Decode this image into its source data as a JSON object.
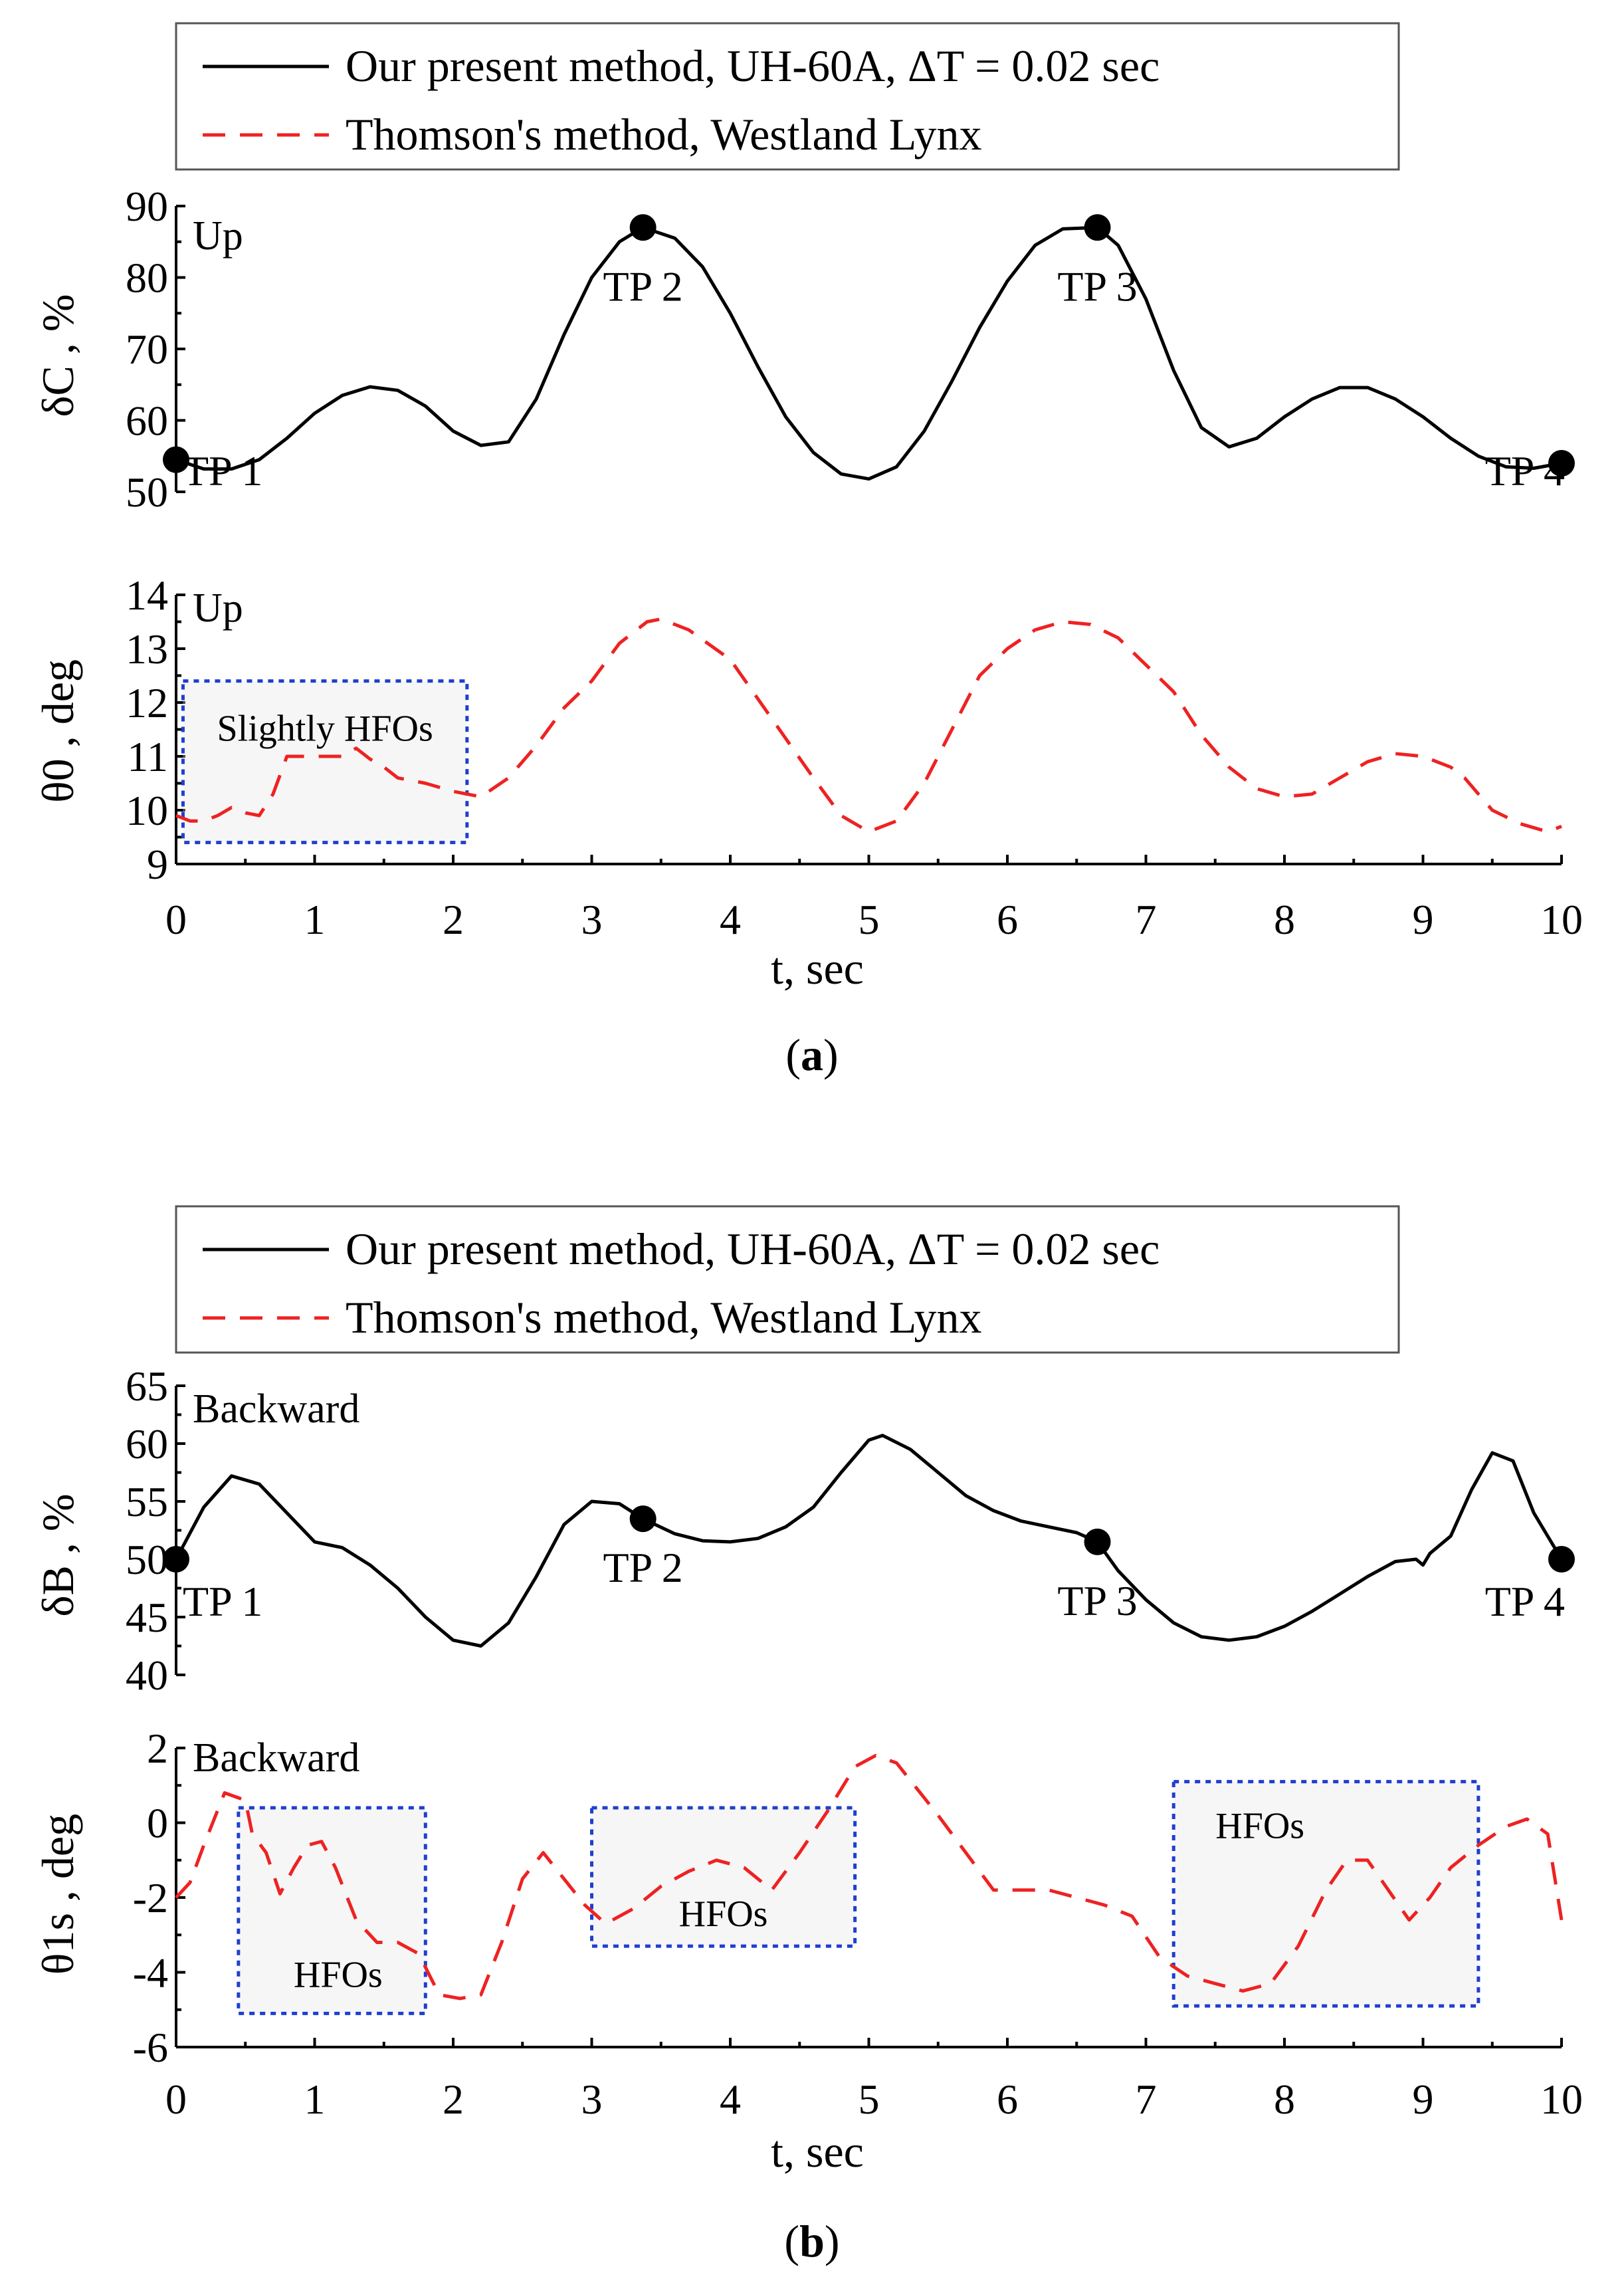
{
  "figure": {
    "colors": {
      "solid": "#000000",
      "dashed": "#ee2222",
      "hfo_box": "#1f3fcf",
      "hfo_fill": "#e6e6e6"
    }
  },
  "panels": [
    {
      "id": "a",
      "caption_letter": "a",
      "legend": {
        "solid_label": "Our present method, UH-60A, ΔT = 0.02 sec",
        "dashed_label": "Thomson's method, Westland Lynx"
      },
      "top": {
        "ylabel": "δC , %",
        "tag": "Up",
        "yticks": [
          "50",
          "60",
          "70",
          "80",
          "90"
        ],
        "ylim": [
          50,
          90
        ],
        "points": [
          {
            "label": "TP 1",
            "x": 0,
            "y": 54.5
          },
          {
            "label": "TP 2",
            "x": 3.37,
            "y": 87
          },
          {
            "label": "TP 3",
            "x": 6.65,
            "y": 87
          },
          {
            "label": "TP 4",
            "x": 10,
            "y": 54
          }
        ]
      },
      "bottom": {
        "ylabel": "θ0 , deg",
        "tag": "Up",
        "yticks": [
          "9",
          "10",
          "11",
          "12",
          "13",
          "14"
        ],
        "ylim": [
          9,
          14
        ],
        "hfo_boxes": [
          {
            "label": "Slightly HFOs",
            "x0": 0.05,
            "x1": 2.1,
            "y0": 9.4,
            "y1": 12.4
          }
        ]
      },
      "xlabel": "t, sec",
      "xticks": [
        "0",
        "1",
        "2",
        "3",
        "4",
        "5",
        "6",
        "7",
        "8",
        "9",
        "10"
      ]
    },
    {
      "id": "b",
      "caption_letter": "b",
      "legend": {
        "solid_label": "Our present method, UH-60A, ΔT = 0.02 sec",
        "dashed_label": "Thomson's method, Westland Lynx"
      },
      "top": {
        "ylabel": "δB , %",
        "tag": "Backward",
        "yticks": [
          "40",
          "45",
          "50",
          "55",
          "60",
          "65"
        ],
        "ylim": [
          40,
          65
        ],
        "points": [
          {
            "label": "TP 1",
            "x": 0,
            "y": 50
          },
          {
            "label": "TP 2",
            "x": 3.37,
            "y": 53.5
          },
          {
            "label": "TP 3",
            "x": 6.65,
            "y": 51.5
          },
          {
            "label": "TP 4",
            "x": 10,
            "y": 50
          }
        ]
      },
      "bottom": {
        "ylabel": "θ1s , deg",
        "tag": "Backward",
        "yticks": [
          "-6",
          "-4",
          "-2",
          "0",
          "2"
        ],
        "ylim": [
          -6,
          2
        ],
        "hfo_boxes": [
          {
            "label": "HFOs",
            "x0": 0.45,
            "x1": 1.8,
            "y0": -5.1,
            "y1": 0.4
          },
          {
            "label": "HFOs",
            "x0": 3.0,
            "x1": 4.9,
            "y0": -3.3,
            "y1": 0.4
          },
          {
            "label": "HFOs",
            "x0": 7.2,
            "x1": 9.4,
            "y0": -4.9,
            "y1": 1.1
          }
        ]
      },
      "xlabel": "t, sec",
      "xticks": [
        "0",
        "1",
        "2",
        "3",
        "4",
        "5",
        "6",
        "7",
        "8",
        "9",
        "10"
      ]
    }
  ],
  "chart_data": [
    {
      "type": "line",
      "panel": "a-top",
      "ylabel": "δC , %",
      "xlabel": "t, sec",
      "xlim": [
        0,
        10
      ],
      "ylim": [
        50,
        90
      ],
      "grid": false,
      "legend_position": "top",
      "series": [
        {
          "name": "Our present method, UH-60A, ΔT = 0.02 sec",
          "style": "solid",
          "x": [
            0,
            0.2,
            0.4,
            0.6,
            0.8,
            1.0,
            1.2,
            1.4,
            1.6,
            1.8,
            2.0,
            2.2,
            2.4,
            2.6,
            2.8,
            3.0,
            3.2,
            3.37,
            3.6,
            3.8,
            4.0,
            4.2,
            4.4,
            4.6,
            4.8,
            5.0,
            5.2,
            5.4,
            5.6,
            5.8,
            6.0,
            6.2,
            6.4,
            6.65,
            6.8,
            7.0,
            7.2,
            7.4,
            7.6,
            7.8,
            8.0,
            8.2,
            8.4,
            8.6,
            8.8,
            9.0,
            9.2,
            9.4,
            9.6,
            9.8,
            10.0
          ],
          "y": [
            54.5,
            53.2,
            53.2,
            54.5,
            57.5,
            61.0,
            63.5,
            64.7,
            64.2,
            62.0,
            58.5,
            56.5,
            57.0,
            63.0,
            72.0,
            80.0,
            85.0,
            87.0,
            85.5,
            81.5,
            75.0,
            67.5,
            60.5,
            55.5,
            52.5,
            51.8,
            53.5,
            58.5,
            65.5,
            73.0,
            79.5,
            84.5,
            86.8,
            87.0,
            84.5,
            77.0,
            67.0,
            59.0,
            56.3,
            57.5,
            60.5,
            63.0,
            64.6,
            64.6,
            63.0,
            60.5,
            57.5,
            55.0,
            53.5,
            53.3,
            54.0
          ]
        }
      ]
    },
    {
      "type": "line",
      "panel": "a-bottom",
      "ylabel": "θ0 , deg",
      "xlabel": "t, sec",
      "xlim": [
        0,
        10
      ],
      "ylim": [
        9,
        14
      ],
      "grid": false,
      "series": [
        {
          "name": "Thomson's method, Westland Lynx",
          "style": "dashed",
          "x": [
            0,
            0.1,
            0.2,
            0.3,
            0.4,
            0.5,
            0.6,
            0.7,
            0.8,
            0.9,
            1.0,
            1.2,
            1.3,
            1.4,
            1.5,
            1.6,
            1.8,
            2.0,
            2.2,
            2.4,
            2.6,
            2.8,
            3.0,
            3.2,
            3.4,
            3.5,
            3.7,
            4.0,
            4.3,
            4.6,
            4.8,
            5.0,
            5.2,
            5.4,
            5.6,
            5.8,
            6.0,
            6.2,
            6.4,
            6.6,
            6.8,
            7.0,
            7.2,
            7.4,
            7.6,
            7.8,
            8.0,
            8.2,
            8.4,
            8.6,
            8.8,
            9.0,
            9.2,
            9.3,
            9.5,
            9.7,
            9.9,
            10.0
          ],
          "y": [
            9.9,
            9.8,
            9.8,
            9.9,
            10.05,
            9.95,
            9.9,
            10.3,
            11.0,
            11.0,
            11.0,
            11.0,
            11.15,
            10.95,
            10.8,
            10.6,
            10.5,
            10.35,
            10.25,
            10.6,
            11.2,
            11.9,
            12.4,
            13.1,
            13.5,
            13.55,
            13.35,
            12.8,
            11.7,
            10.6,
            9.9,
            9.6,
            9.8,
            10.5,
            11.5,
            12.5,
            13.0,
            13.35,
            13.5,
            13.45,
            13.2,
            12.7,
            12.2,
            11.4,
            10.8,
            10.4,
            10.25,
            10.3,
            10.6,
            10.9,
            11.05,
            11.0,
            10.8,
            10.6,
            10.0,
            9.75,
            9.6,
            9.7
          ]
        }
      ]
    },
    {
      "type": "line",
      "panel": "b-top",
      "ylabel": "δB , %",
      "xlabel": "t, sec",
      "xlim": [
        0,
        10
      ],
      "ylim": [
        40,
        65
      ],
      "grid": false,
      "legend_position": "top",
      "series": [
        {
          "name": "Our present method, UH-60A, ΔT = 0.02 sec",
          "style": "solid",
          "x": [
            0,
            0.2,
            0.4,
            0.6,
            0.8,
            1.0,
            1.2,
            1.4,
            1.6,
            1.8,
            2.0,
            2.2,
            2.4,
            2.6,
            2.8,
            3.0,
            3.2,
            3.37,
            3.6,
            3.8,
            4.0,
            4.2,
            4.4,
            4.6,
            4.8,
            5.0,
            5.1,
            5.3,
            5.5,
            5.7,
            5.9,
            6.1,
            6.3,
            6.5,
            6.65,
            6.8,
            7.0,
            7.2,
            7.4,
            7.6,
            7.8,
            8.0,
            8.2,
            8.4,
            8.6,
            8.8,
            8.95,
            9.0,
            9.05,
            9.2,
            9.35,
            9.5,
            9.65,
            9.8,
            10.0
          ],
          "y": [
            50,
            54.5,
            57.2,
            56.5,
            54.0,
            51.5,
            51.0,
            49.5,
            47.5,
            45.0,
            43.0,
            42.5,
            44.5,
            48.5,
            53.0,
            55.0,
            54.8,
            53.5,
            52.2,
            51.6,
            51.5,
            51.8,
            52.8,
            54.5,
            57.5,
            60.3,
            60.7,
            59.5,
            57.5,
            55.5,
            54.2,
            53.3,
            52.8,
            52.3,
            51.5,
            49.0,
            46.5,
            44.5,
            43.3,
            43.0,
            43.3,
            44.2,
            45.5,
            47.0,
            48.5,
            49.8,
            50.0,
            49.5,
            50.5,
            52.0,
            56.0,
            59.2,
            58.5,
            54.0,
            50.0
          ]
        }
      ]
    },
    {
      "type": "line",
      "panel": "b-bottom",
      "ylabel": "θ1s , deg",
      "xlabel": "t, sec",
      "xlim": [
        0,
        10
      ],
      "ylim": [
        -6,
        2
      ],
      "grid": false,
      "series": [
        {
          "name": "Thomson's method, Westland Lynx",
          "style": "dashed",
          "x": [
            0,
            0.1,
            0.2,
            0.35,
            0.5,
            0.55,
            0.65,
            0.75,
            0.85,
            0.95,
            1.05,
            1.15,
            1.3,
            1.45,
            1.6,
            1.75,
            1.9,
            2.05,
            2.2,
            2.35,
            2.5,
            2.65,
            2.8,
            2.95,
            3.1,
            3.3,
            3.5,
            3.7,
            3.9,
            4.1,
            4.3,
            4.5,
            4.7,
            4.9,
            5.05,
            5.2,
            5.35,
            5.5,
            5.7,
            5.9,
            6.1,
            6.3,
            6.5,
            6.7,
            6.9,
            7.1,
            7.3,
            7.5,
            7.7,
            7.9,
            8.1,
            8.3,
            8.45,
            8.6,
            8.75,
            8.9,
            9.05,
            9.2,
            9.4,
            9.6,
            9.75,
            9.9,
            10.0
          ],
          "y": [
            -2.0,
            -1.6,
            -0.6,
            0.8,
            0.6,
            -0.3,
            -0.8,
            -1.9,
            -1.2,
            -0.6,
            -0.5,
            -1.2,
            -2.6,
            -3.2,
            -3.2,
            -3.5,
            -4.6,
            -4.7,
            -4.6,
            -3.2,
            -1.5,
            -0.8,
            -1.5,
            -2.2,
            -2.7,
            -2.3,
            -1.7,
            -1.3,
            -1.0,
            -1.2,
            -1.8,
            -0.8,
            0.3,
            1.5,
            1.8,
            1.6,
            0.9,
            0.2,
            -0.8,
            -1.8,
            -1.8,
            -1.8,
            -2.0,
            -2.2,
            -2.5,
            -3.6,
            -4.1,
            -4.3,
            -4.5,
            -4.3,
            -3.3,
            -1.8,
            -1.0,
            -1.0,
            -1.8,
            -2.6,
            -2.0,
            -1.2,
            -0.6,
            -0.1,
            0.1,
            -0.3,
            -2.6
          ]
        }
      ]
    }
  ]
}
